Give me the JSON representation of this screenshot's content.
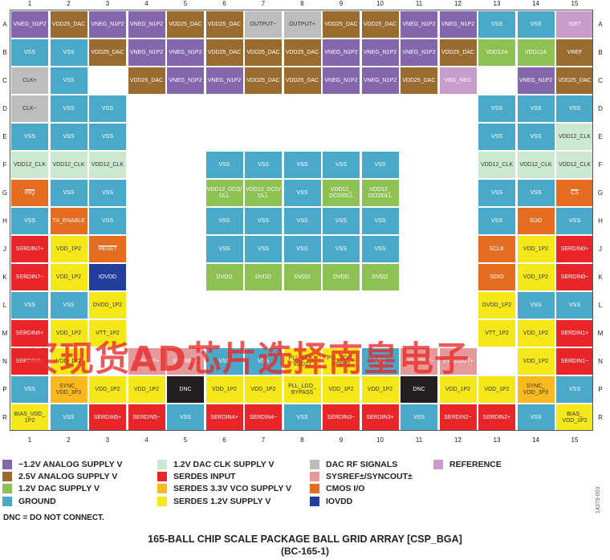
{
  "colors": {
    "neg_1p2": "#8466ad",
    "analog_2p5": "#9a6b2f",
    "dac_1p2": "#8dc153",
    "ground": "#4aa9c9",
    "dac_clk_1p2": "#cde8d0",
    "serdes_input": "#e8262a",
    "vco_3p3": "#fbb920",
    "serdes_1p2": "#f4e81a",
    "dac_rf": "#bdbdbd",
    "sysref": "#e49a9a",
    "cmos": "#e56d22",
    "iovdd": "#233e9c",
    "reference": "#c79bca",
    "dnc": "#231f20"
  },
  "columns": [
    "1",
    "2",
    "3",
    "4",
    "5",
    "6",
    "7",
    "8",
    "9",
    "10",
    "11",
    "12",
    "13",
    "14",
    "15"
  ],
  "rows": [
    "A",
    "B",
    "C",
    "D",
    "E",
    "F",
    "G",
    "H",
    "J",
    "K",
    "L",
    "M",
    "N",
    "P",
    "R"
  ],
  "balls": [
    {
      "r": "A",
      "c": 1,
      "label": "VNEG_N1P2",
      "type": "neg_1p2"
    },
    {
      "r": "A",
      "c": 2,
      "label": "VDD25_DAC",
      "type": "analog_2p5"
    },
    {
      "r": "A",
      "c": 3,
      "label": "VNEG_N1P2",
      "type": "neg_1p2"
    },
    {
      "r": "A",
      "c": 4,
      "label": "VNEG_N1P2",
      "type": "neg_1p2"
    },
    {
      "r": "A",
      "c": 5,
      "label": "VDD25_DAC",
      "type": "analog_2p5"
    },
    {
      "r": "A",
      "c": 6,
      "label": "VDD25_DAC",
      "type": "analog_2p5"
    },
    {
      "r": "A",
      "c": 7,
      "label": "OUTPUT−",
      "type": "dac_rf"
    },
    {
      "r": "A",
      "c": 8,
      "label": "OUTPUT+",
      "type": "dac_rf"
    },
    {
      "r": "A",
      "c": 9,
      "label": "VDD25_DAC",
      "type": "analog_2p5"
    },
    {
      "r": "A",
      "c": 10,
      "label": "VDD25_DAC",
      "type": "analog_2p5"
    },
    {
      "r": "A",
      "c": 11,
      "label": "VNEG_N1P2",
      "type": "neg_1p2"
    },
    {
      "r": "A",
      "c": 12,
      "label": "VNEG_N1P2",
      "type": "neg_1p2"
    },
    {
      "r": "A",
      "c": 13,
      "label": "VSS",
      "type": "ground"
    },
    {
      "r": "A",
      "c": 14,
      "label": "VSS",
      "type": "ground"
    },
    {
      "r": "A",
      "c": 15,
      "label": "ISET",
      "type": "reference"
    },
    {
      "r": "B",
      "c": 1,
      "label": "VSS",
      "type": "ground"
    },
    {
      "r": "B",
      "c": 2,
      "label": "VSS",
      "type": "ground"
    },
    {
      "r": "B",
      "c": 3,
      "label": "VDD25_DAC",
      "type": "analog_2p5"
    },
    {
      "r": "B",
      "c": 4,
      "label": "VNEG_N1P2",
      "type": "neg_1p2"
    },
    {
      "r": "B",
      "c": 5,
      "label": "VNEG_N1P2",
      "type": "neg_1p2"
    },
    {
      "r": "B",
      "c": 6,
      "label": "VDD25_DAC",
      "type": "analog_2p5"
    },
    {
      "r": "B",
      "c": 7,
      "label": "VDD25_DAC",
      "type": "analog_2p5"
    },
    {
      "r": "B",
      "c": 8,
      "label": "VDD25_DAC",
      "type": "analog_2p5"
    },
    {
      "r": "B",
      "c": 9,
      "label": "VNEG_N1P2",
      "type": "neg_1p2"
    },
    {
      "r": "B",
      "c": 10,
      "label": "VNEG_N1P2",
      "type": "neg_1p2"
    },
    {
      "r": "B",
      "c": 11,
      "label": "VNEG_N1P2",
      "type": "neg_1p2"
    },
    {
      "r": "B",
      "c": 12,
      "label": "VDD25_DAC",
      "type": "analog_2p5"
    },
    {
      "r": "B",
      "c": 13,
      "label": "VDD12A",
      "type": "dac_1p2"
    },
    {
      "r": "B",
      "c": 14,
      "label": "VDD12A",
      "type": "dac_1p2"
    },
    {
      "r": "B",
      "c": 15,
      "label": "VREF",
      "type": "analog_2p5"
    },
    {
      "r": "C",
      "c": 1,
      "label": "CLK+",
      "type": "dac_rf"
    },
    {
      "r": "C",
      "c": 2,
      "label": "VSS",
      "type": "ground"
    },
    {
      "r": "C",
      "c": 4,
      "label": "VDD25_DAC",
      "type": "analog_2p5"
    },
    {
      "r": "C",
      "c": 5,
      "label": "VNEG_N1P2",
      "type": "neg_1p2"
    },
    {
      "r": "C",
      "c": 6,
      "label": "VNEG_N1P2",
      "type": "neg_1p2"
    },
    {
      "r": "C",
      "c": 7,
      "label": "VDD25_DAC",
      "type": "analog_2p5"
    },
    {
      "r": "C",
      "c": 8,
      "label": "VDD25_DAC",
      "type": "analog_2p5"
    },
    {
      "r": "C",
      "c": 9,
      "label": "VNEG_N1P2",
      "type": "neg_1p2"
    },
    {
      "r": "C",
      "c": 10,
      "label": "VNEG_N1P2",
      "type": "neg_1p2"
    },
    {
      "r": "C",
      "c": 11,
      "label": "VDD25_DAC",
      "type": "analog_2p5"
    },
    {
      "r": "C",
      "c": 12,
      "label": "VBG_NEG",
      "type": "reference"
    },
    {
      "r": "C",
      "c": 14,
      "label": "VNEG_N1P2",
      "type": "neg_1p2"
    },
    {
      "r": "C",
      "c": 15,
      "label": "VDD25_DAC",
      "type": "analog_2p5"
    },
    {
      "r": "D",
      "c": 1,
      "label": "CLK−",
      "type": "dac_rf"
    },
    {
      "r": "D",
      "c": 2,
      "label": "VSS",
      "type": "ground"
    },
    {
      "r": "D",
      "c": 3,
      "label": "VSS",
      "type": "ground"
    },
    {
      "r": "D",
      "c": 13,
      "label": "VSS",
      "type": "ground"
    },
    {
      "r": "D",
      "c": 14,
      "label": "VSS",
      "type": "ground"
    },
    {
      "r": "D",
      "c": 15,
      "label": "VSS",
      "type": "ground"
    },
    {
      "r": "E",
      "c": 1,
      "label": "VSS",
      "type": "ground"
    },
    {
      "r": "E",
      "c": 2,
      "label": "VSS",
      "type": "ground"
    },
    {
      "r": "E",
      "c": 3,
      "label": "VSS",
      "type": "ground"
    },
    {
      "r": "E",
      "c": 13,
      "label": "VSS",
      "type": "ground"
    },
    {
      "r": "E",
      "c": 14,
      "label": "VSS",
      "type": "ground"
    },
    {
      "r": "E",
      "c": 15,
      "label": "VDD12_CLK",
      "type": "dac_clk_1p2"
    },
    {
      "r": "F",
      "c": 1,
      "label": "VDD12_CLK",
      "type": "dac_clk_1p2"
    },
    {
      "r": "F",
      "c": 2,
      "label": "VDD12_CLK",
      "type": "dac_clk_1p2"
    },
    {
      "r": "F",
      "c": 3,
      "label": "VDD12_CLK",
      "type": "dac_clk_1p2"
    },
    {
      "r": "F",
      "c": 6,
      "label": "VSS",
      "type": "ground"
    },
    {
      "r": "F",
      "c": 7,
      "label": "VSS",
      "type": "ground"
    },
    {
      "r": "F",
      "c": 8,
      "label": "VSS",
      "type": "ground"
    },
    {
      "r": "F",
      "c": 9,
      "label": "VSS",
      "type": "ground"
    },
    {
      "r": "F",
      "c": 10,
      "label": "VSS",
      "type": "ground"
    },
    {
      "r": "F",
      "c": 13,
      "label": "VDD12_CLK",
      "type": "dac_clk_1p2"
    },
    {
      "r": "F",
      "c": 14,
      "label": "VDD12_CLK",
      "type": "dac_clk_1p2"
    },
    {
      "r": "F",
      "c": 15,
      "label": "VDD12_CLK",
      "type": "dac_clk_1p2"
    },
    {
      "r": "G",
      "c": 1,
      "label": "IRQ",
      "type": "cmos",
      "overline": true
    },
    {
      "r": "G",
      "c": 2,
      "label": "VSS",
      "type": "ground"
    },
    {
      "r": "G",
      "c": 3,
      "label": "VSS",
      "type": "ground"
    },
    {
      "r": "G",
      "c": 6,
      "label": "VDD12_DCD/\nDLL",
      "type": "dac_1p2"
    },
    {
      "r": "G",
      "c": 7,
      "label": "VDD12_DCD/\nDLL",
      "type": "dac_1p2"
    },
    {
      "r": "G",
      "c": 8,
      "label": "VSS",
      "type": "ground"
    },
    {
      "r": "G",
      "c": 9,
      "label": "VDD12_\nDCD/DLL",
      "type": "dac_1p2"
    },
    {
      "r": "G",
      "c": 10,
      "label": "VDD12_\nDCD/DLL",
      "type": "dac_1p2"
    },
    {
      "r": "G",
      "c": 13,
      "label": "VSS",
      "type": "ground"
    },
    {
      "r": "G",
      "c": 14,
      "label": "VSS",
      "type": "ground"
    },
    {
      "r": "G",
      "c": 15,
      "label": "CS",
      "type": "cmos",
      "overline": true
    },
    {
      "r": "H",
      "c": 1,
      "label": "VSS",
      "type": "ground"
    },
    {
      "r": "H",
      "c": 2,
      "label": "TX_ENABLE",
      "type": "cmos"
    },
    {
      "r": "H",
      "c": 3,
      "label": "VSS",
      "type": "ground"
    },
    {
      "r": "H",
      "c": 6,
      "label": "VSS",
      "type": "ground"
    },
    {
      "r": "H",
      "c": 7,
      "label": "VSS",
      "type": "ground"
    },
    {
      "r": "H",
      "c": 8,
      "label": "VSS",
      "type": "ground"
    },
    {
      "r": "H",
      "c": 9,
      "label": "VSS",
      "type": "ground"
    },
    {
      "r": "H",
      "c": 10,
      "label": "VSS",
      "type": "ground"
    },
    {
      "r": "H",
      "c": 13,
      "label": "VSS",
      "type": "ground"
    },
    {
      "r": "H",
      "c": 14,
      "label": "SDO",
      "type": "cmos"
    },
    {
      "r": "H",
      "c": 15,
      "label": "VSS",
      "type": "ground"
    },
    {
      "r": "J",
      "c": 1,
      "label": "SERDIN7+",
      "type": "serdes_input"
    },
    {
      "r": "J",
      "c": 2,
      "label": "VDD_1P2",
      "type": "serdes_1p2"
    },
    {
      "r": "J",
      "c": 3,
      "label": "RESET",
      "type": "cmos",
      "overline": true
    },
    {
      "r": "J",
      "c": 6,
      "label": "VSS",
      "type": "ground"
    },
    {
      "r": "J",
      "c": 7,
      "label": "VSS",
      "type": "ground"
    },
    {
      "r": "J",
      "c": 8,
      "label": "VSS",
      "type": "ground"
    },
    {
      "r": "J",
      "c": 9,
      "label": "VSS",
      "type": "ground"
    },
    {
      "r": "J",
      "c": 10,
      "label": "VSS",
      "type": "ground"
    },
    {
      "r": "J",
      "c": 13,
      "label": "SCLK",
      "type": "cmos"
    },
    {
      "r": "J",
      "c": 14,
      "label": "VDD_1P2",
      "type": "serdes_1p2"
    },
    {
      "r": "J",
      "c": 15,
      "label": "SERDIN0+",
      "type": "serdes_input"
    },
    {
      "r": "K",
      "c": 1,
      "label": "SERDIN7−",
      "type": "serdes_input"
    },
    {
      "r": "K",
      "c": 2,
      "label": "VDD_1P2",
      "type": "serdes_1p2"
    },
    {
      "r": "K",
      "c": 3,
      "label": "IOVDD",
      "type": "iovdd"
    },
    {
      "r": "K",
      "c": 6,
      "label": "DVDD",
      "type": "dac_1p2"
    },
    {
      "r": "K",
      "c": 7,
      "label": "DVDD",
      "type": "dac_1p2"
    },
    {
      "r": "K",
      "c": 8,
      "label": "DVDD",
      "type": "dac_1p2"
    },
    {
      "r": "K",
      "c": 9,
      "label": "DVDD",
      "type": "dac_1p2"
    },
    {
      "r": "K",
      "c": 10,
      "label": "DVDD",
      "type": "dac_1p2"
    },
    {
      "r": "K",
      "c": 13,
      "label": "SDIO",
      "type": "cmos"
    },
    {
      "r": "K",
      "c": 14,
      "label": "VDD_1P2",
      "type": "serdes_1p2"
    },
    {
      "r": "K",
      "c": 15,
      "label": "SERDIN0−",
      "type": "serdes_input"
    },
    {
      "r": "L",
      "c": 1,
      "label": "VSS",
      "type": "ground"
    },
    {
      "r": "L",
      "c": 2,
      "label": "VSS",
      "type": "ground"
    },
    {
      "r": "L",
      "c": 3,
      "label": "DVDD_1P2",
      "type": "serdes_1p2"
    },
    {
      "r": "L",
      "c": 13,
      "label": "DVDD_1P2",
      "type": "serdes_1p2"
    },
    {
      "r": "L",
      "c": 14,
      "label": "VSS",
      "type": "ground"
    },
    {
      "r": "L",
      "c": 15,
      "label": "VSS",
      "type": "ground"
    },
    {
      "r": "M",
      "c": 1,
      "label": "SERDIN6+",
      "type": "serdes_input"
    },
    {
      "r": "M",
      "c": 2,
      "label": "VDD_1P2",
      "type": "serdes_1p2"
    },
    {
      "r": "M",
      "c": 3,
      "label": "VTT_1P2",
      "type": "serdes_1p2"
    },
    {
      "r": "M",
      "c": 13,
      "label": "VTT_1P2",
      "type": "serdes_1p2"
    },
    {
      "r": "M",
      "c": 14,
      "label": "VDD_1P2",
      "type": "serdes_1p2"
    },
    {
      "r": "M",
      "c": 15,
      "label": "SERDIN1+",
      "type": "serdes_input"
    },
    {
      "r": "N",
      "c": 1,
      "label": "SERDIN6−",
      "type": "serdes_input"
    },
    {
      "r": "N",
      "c": 2,
      "label": "VDD_1P2",
      "type": "serdes_1p2"
    },
    {
      "r": "N",
      "c": 4,
      "label": "SYSREF+",
      "type": "sysref"
    },
    {
      "r": "N",
      "c": 5,
      "label": "SYSREF−",
      "type": "sysref"
    },
    {
      "r": "N",
      "c": 6,
      "label": "VSS",
      "type": "ground"
    },
    {
      "r": "N",
      "c": 7,
      "label": "VSS",
      "type": "ground"
    },
    {
      "r": "N",
      "c": 8,
      "label": "PLL_CLK_\nVDD12",
      "type": "serdes_1p2"
    },
    {
      "r": "N",
      "c": 9,
      "label": "PLL_LDO_\nVDD12",
      "type": "serdes_1p2"
    },
    {
      "r": "N",
      "c": 10,
      "label": "VSS",
      "type": "ground"
    },
    {
      "r": "N",
      "c": 11,
      "label": "SYNCOUT−",
      "type": "sysref"
    },
    {
      "r": "N",
      "c": 12,
      "label": "SYNCOUT+",
      "type": "sysref"
    },
    {
      "r": "N",
      "c": 14,
      "label": "VDD_1P2",
      "type": "serdes_1p2"
    },
    {
      "r": "N",
      "c": 15,
      "label": "SERDIN1−",
      "type": "serdes_input"
    },
    {
      "r": "P",
      "c": 1,
      "label": "VSS",
      "type": "ground"
    },
    {
      "r": "P",
      "c": 2,
      "label": "SYNC_\nVDD_3P3",
      "type": "vco_3p3"
    },
    {
      "r": "P",
      "c": 3,
      "label": "VDD_1P2",
      "type": "serdes_1p2"
    },
    {
      "r": "P",
      "c": 4,
      "label": "VDD_1P2",
      "type": "serdes_1p2"
    },
    {
      "r": "P",
      "c": 5,
      "label": "DNC",
      "type": "dnc"
    },
    {
      "r": "P",
      "c": 6,
      "label": "VDD_1P2",
      "type": "serdes_1p2"
    },
    {
      "r": "P",
      "c": 7,
      "label": "VDD_1P2",
      "type": "serdes_1p2"
    },
    {
      "r": "P",
      "c": 8,
      "label": "PLL_LDO_\nBYPASS",
      "type": "serdes_1p2"
    },
    {
      "r": "P",
      "c": 9,
      "label": "VDD_1P2",
      "type": "serdes_1p2"
    },
    {
      "r": "P",
      "c": 10,
      "label": "VDD_1P2",
      "type": "serdes_1p2"
    },
    {
      "r": "P",
      "c": 11,
      "label": "DNC",
      "type": "dnc"
    },
    {
      "r": "P",
      "c": 12,
      "label": "VDD_1P2",
      "type": "serdes_1p2"
    },
    {
      "r": "P",
      "c": 13,
      "label": "VDD_1P2",
      "type": "serdes_1p2"
    },
    {
      "r": "P",
      "c": 14,
      "label": "SYNC_\nVDD_3P3",
      "type": "vco_3p3"
    },
    {
      "r": "P",
      "c": 15,
      "label": "VSS",
      "type": "ground"
    },
    {
      "r": "R",
      "c": 1,
      "label": "BIAS_VDD_\n1P2",
      "type": "serdes_1p2"
    },
    {
      "r": "R",
      "c": 2,
      "label": "VSS",
      "type": "ground"
    },
    {
      "r": "R",
      "c": 3,
      "label": "SERDIN5+",
      "type": "serdes_input"
    },
    {
      "r": "R",
      "c": 4,
      "label": "SERDIN5−",
      "type": "serdes_input"
    },
    {
      "r": "R",
      "c": 5,
      "label": "VSS",
      "type": "ground"
    },
    {
      "r": "R",
      "c": 6,
      "label": "SERDIN4+",
      "type": "serdes_input"
    },
    {
      "r": "R",
      "c": 7,
      "label": "SERDIN4−",
      "type": "serdes_input"
    },
    {
      "r": "R",
      "c": 8,
      "label": "VSS",
      "type": "ground"
    },
    {
      "r": "R",
      "c": 9,
      "label": "SERDIN3−",
      "type": "serdes_input"
    },
    {
      "r": "R",
      "c": 10,
      "label": "SERDIN3+",
      "type": "serdes_input"
    },
    {
      "r": "R",
      "c": 11,
      "label": "VSS",
      "type": "ground"
    },
    {
      "r": "R",
      "c": 12,
      "label": "SERDIN2−",
      "type": "serdes_input"
    },
    {
      "r": "R",
      "c": 13,
      "label": "SERDIN2+",
      "type": "serdes_input"
    },
    {
      "r": "R",
      "c": 14,
      "label": "VSS",
      "type": "ground"
    },
    {
      "r": "R",
      "c": 15,
      "label": "BIAS_\nVDD_1P2",
      "type": "serdes_1p2"
    }
  ],
  "legend": [
    {
      "label": "−1.2V ANALOG SUPPLY V",
      "type": "neg_1p2"
    },
    {
      "label": "1.2V DAC CLK SUPPLY V",
      "type": "dac_clk_1p2"
    },
    {
      "label": "DAC RF SIGNALS",
      "type": "dac_rf"
    },
    {
      "label": "REFERENCE",
      "type": "reference"
    },
    {
      "label": "2.5V ANALOG SUPPLY V",
      "type": "analog_2p5"
    },
    {
      "label": "SERDES INPUT",
      "type": "serdes_input"
    },
    {
      "label": "SYSREF±/SYNCOUT±",
      "type": "sysref"
    },
    {
      "label": "1.2V DAC SUPPLY V",
      "type": "dac_1p2"
    },
    {
      "label": "SERDES 3.3V VCO SUPPLY V",
      "type": "vco_3p3"
    },
    {
      "label": "CMOS  I/O",
      "type": "cmos"
    },
    {
      "label": "GROUND",
      "type": "ground"
    },
    {
      "label": "SERDES 1.2V SUPPLY V",
      "type": "serdes_1p2"
    },
    {
      "label": "IOVDD",
      "type": "iovdd"
    }
  ],
  "watermark": "买现货AD芯片选择南皇电子",
  "dnc_note": "DNC = DO NOT CONNECT.",
  "figure_id": "14379-003",
  "title_line1": "165-BALL CHIP SCALE PACKAGE BALL GRID ARRAY [CSP_BGA]",
  "title_line2": "(BC-165-1)"
}
